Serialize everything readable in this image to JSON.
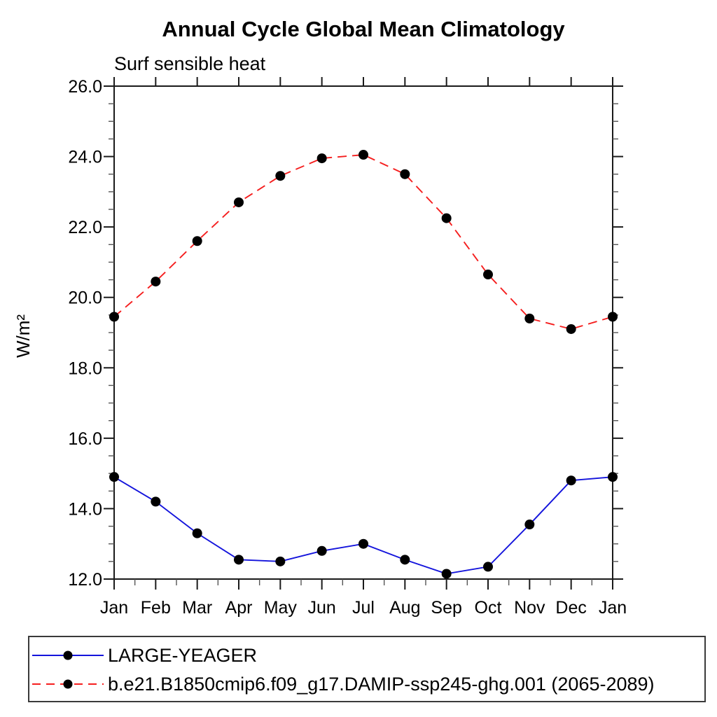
{
  "chart_data": {
    "type": "line",
    "title": "Annual Cycle Global Mean Climatology",
    "subtitle": "Surf sensible heat",
    "xlabel": "",
    "ylabel": "W/m²",
    "x_categories": [
      "Jan",
      "Feb",
      "Mar",
      "Apr",
      "May",
      "Jun",
      "Jul",
      "Aug",
      "Sep",
      "Oct",
      "Nov",
      "Dec",
      "Jan"
    ],
    "ylim": [
      12.0,
      26.0
    ],
    "y_major_step": 2.0,
    "y_minor_step": 0.5,
    "y_tick_format": "one_decimal",
    "grid": false,
    "legend_position": "bottom",
    "marker": "filled-circle",
    "marker_color": "#000000",
    "series": [
      {
        "name": "LARGE-YEAGER",
        "color": "#1414dc",
        "line_style": "solid",
        "values": [
          14.9,
          14.2,
          13.3,
          12.55,
          12.5,
          12.8,
          13.0,
          12.55,
          12.15,
          12.35,
          13.55,
          14.8,
          14.9
        ]
      },
      {
        "name": "b.e21.B1850cmip6.f09_g17.DAMIP-ssp245-ghg.001 (2065-2089)",
        "color": "#f51e1e",
        "line_style": "dashed",
        "values": [
          19.45,
          20.45,
          21.6,
          22.7,
          23.45,
          23.95,
          24.05,
          23.5,
          22.25,
          20.65,
          19.4,
          19.1,
          19.45
        ]
      }
    ]
  }
}
